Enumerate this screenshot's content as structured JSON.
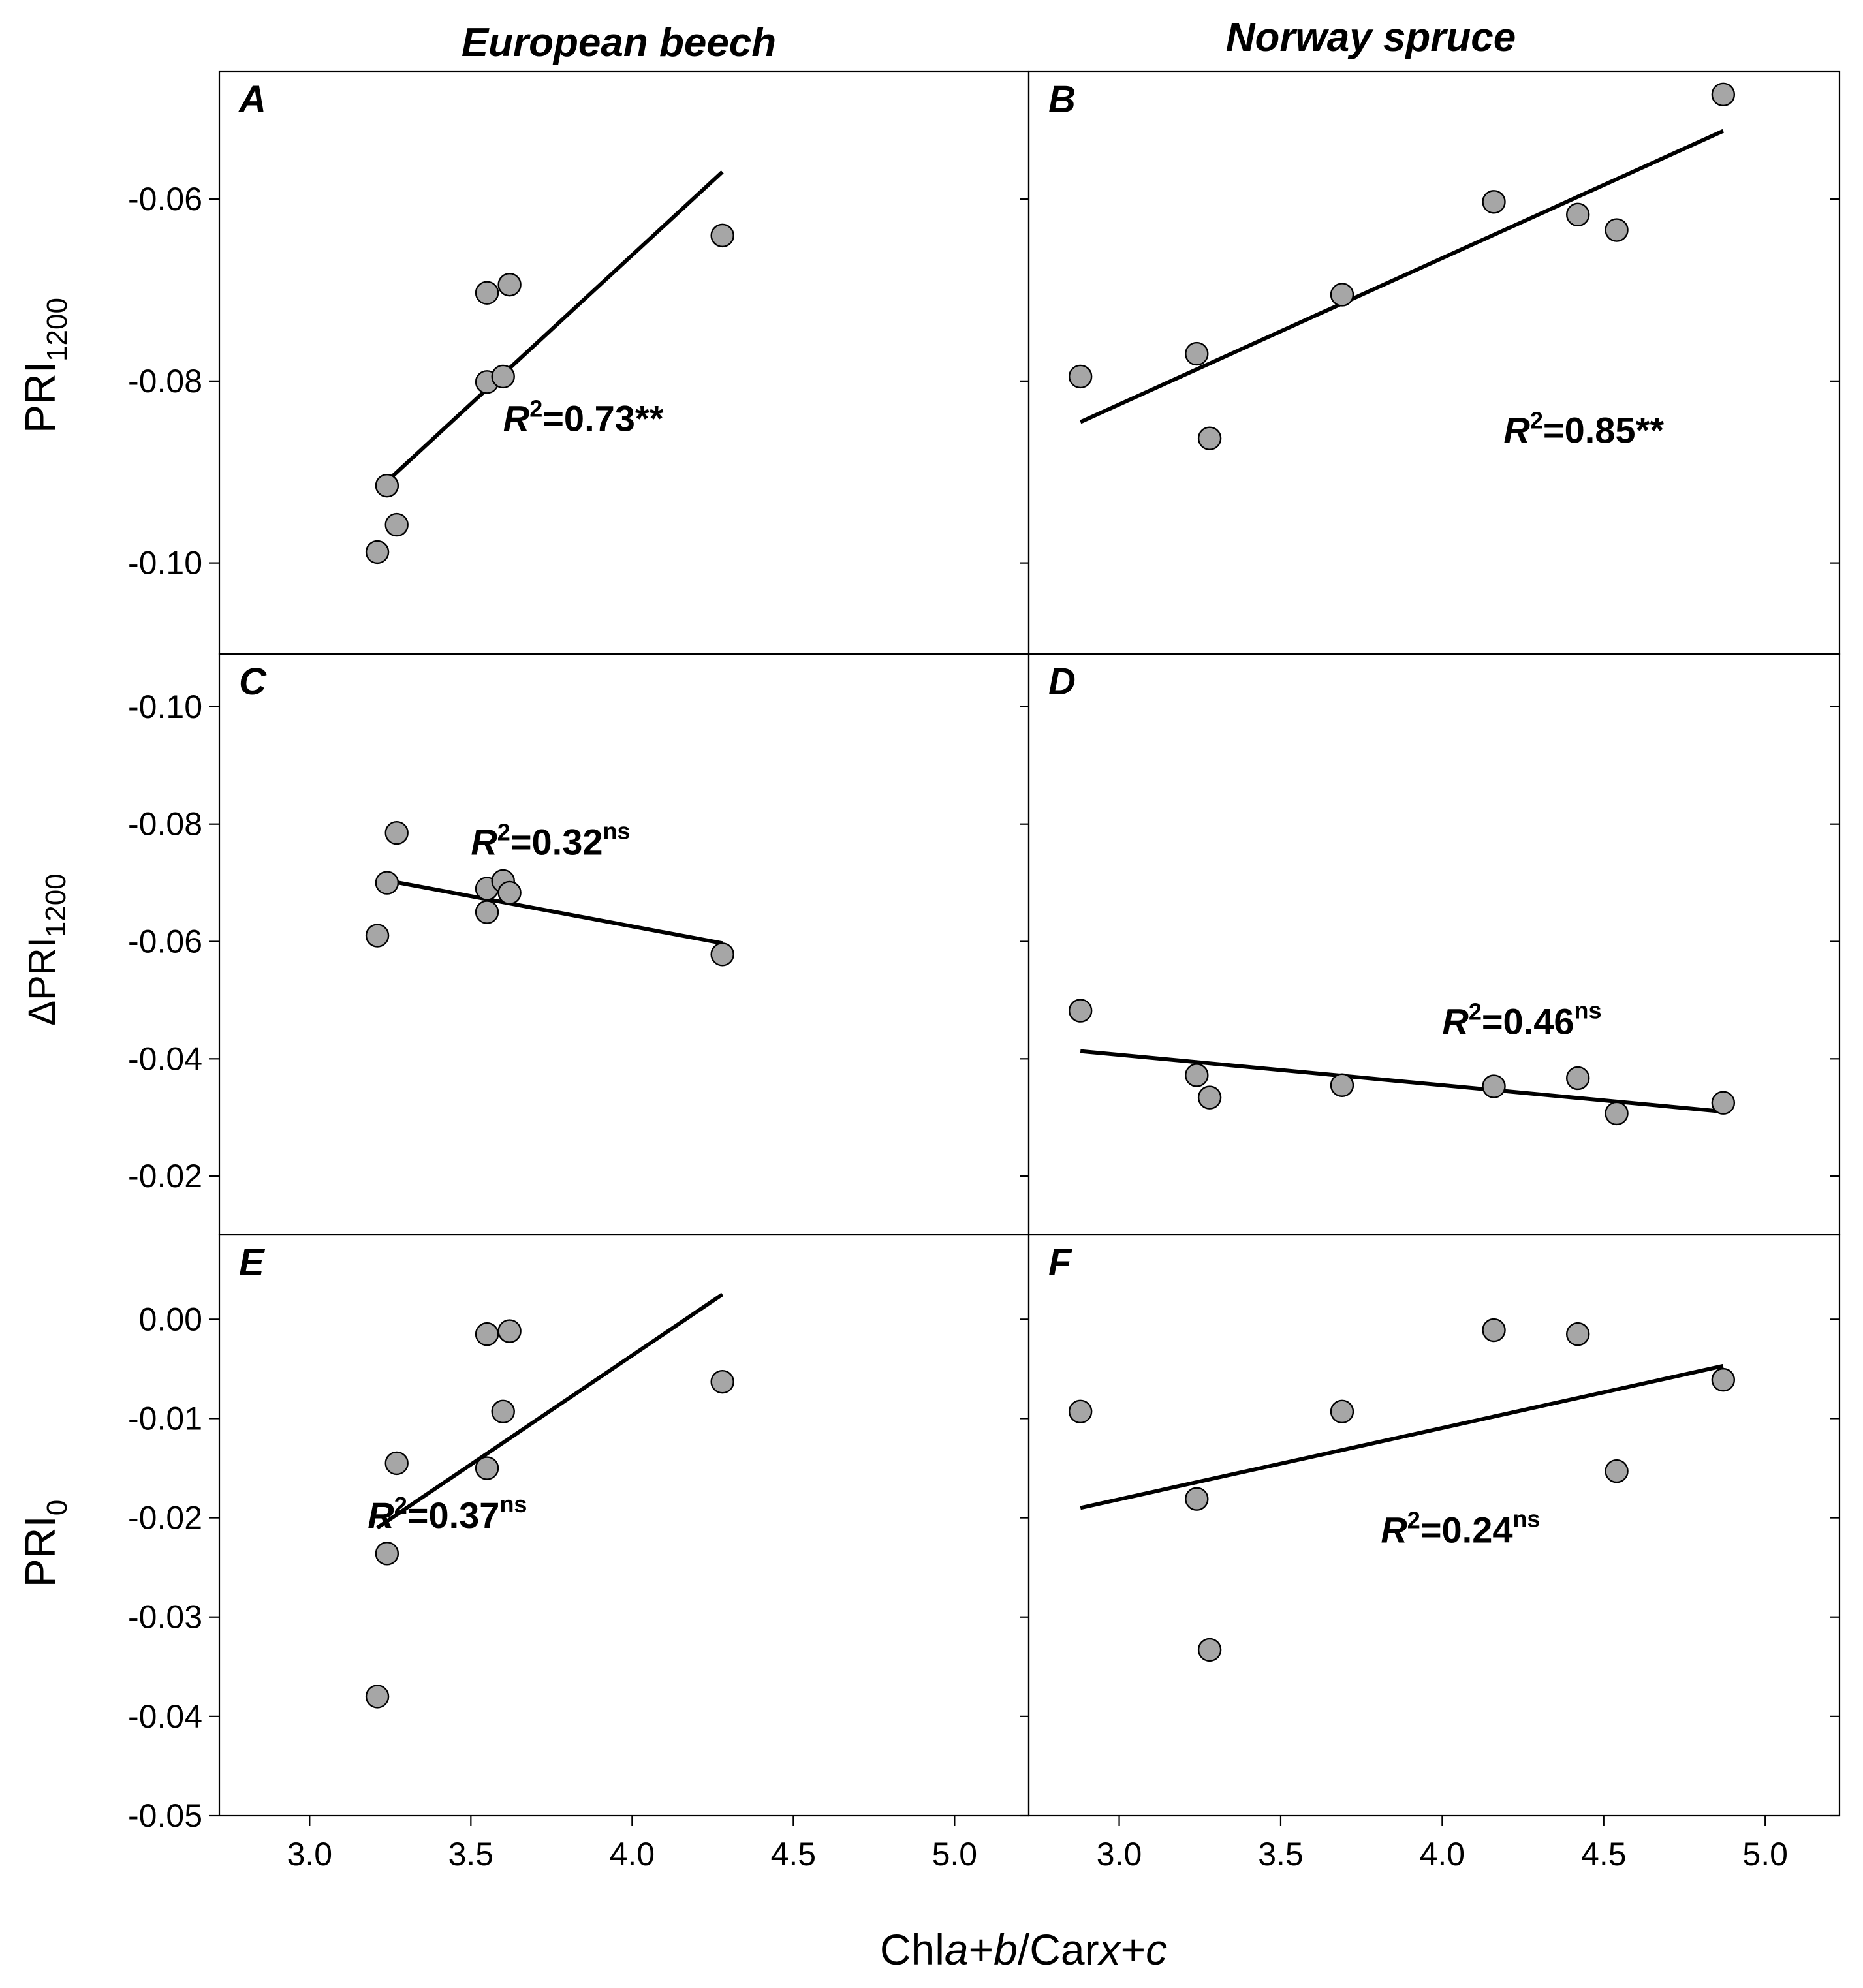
{
  "chart_data": {
    "type": "scatter",
    "column_titles": [
      "European beech",
      "Norway spruce"
    ],
    "x_axis": {
      "label": {
        "prefix": "Chl",
        "a": "a",
        "plus1": "+",
        "b": "b",
        "slash": "/Car",
        "x": "x",
        "plus2": "+",
        "c": "c"
      },
      "ticks": [
        "3.0",
        "3.5",
        "4.0",
        "4.5",
        "5.0"
      ],
      "tick_values": [
        3.0,
        3.5,
        4.0,
        4.5,
        5.0
      ],
      "xlim": [
        2.72,
        5.23
      ]
    },
    "rows": [
      {
        "ylabel_main": "PRI",
        "ylabel_sub": "1200",
        "ylim": [
          -0.11,
          -0.046
        ],
        "inverted": false,
        "yticks": [
          -0.06,
          -0.08,
          -0.1
        ],
        "ytick_labels": [
          "-0.06",
          "-0.08",
          "-0.10"
        ]
      },
      {
        "ylabel_main": "ΔPRI",
        "ylabel_sub": "1200",
        "ylim": [
          -0.01,
          -0.109
        ],
        "inverted": true,
        "yticks": [
          -0.1,
          -0.08,
          -0.06,
          -0.04,
          -0.02
        ],
        "ytick_labels": [
          "-0.10",
          "-0.08",
          "-0.06",
          "-0.04",
          "-0.02"
        ]
      },
      {
        "ylabel_main": "PRI",
        "ylabel_sub": "0",
        "ylim": [
          -0.05,
          0.0085
        ],
        "inverted": false,
        "yticks": [
          0.0,
          -0.01,
          -0.02,
          -0.03,
          -0.04,
          -0.05
        ],
        "ytick_labels": [
          "0.00",
          "-0.01",
          "-0.02",
          "-0.03",
          "-0.04",
          "-0.05"
        ]
      }
    ],
    "panels": [
      {
        "letter": "A",
        "row": 0,
        "col": 0,
        "points": [
          [
            3.21,
            -0.0988
          ],
          [
            3.24,
            -0.0915
          ],
          [
            3.27,
            -0.0958
          ],
          [
            3.55,
            -0.0703
          ],
          [
            3.55,
            -0.0801
          ],
          [
            3.6,
            -0.0795
          ],
          [
            3.62,
            -0.0694
          ],
          [
            4.28,
            -0.064
          ]
        ],
        "fit": [
          [
            3.21,
            -0.092
          ],
          [
            4.28,
            -0.057
          ]
        ],
        "r2": {
          "prefix": "R",
          "sup1": "2",
          "value": "=0.73**",
          "sup2": ""
        },
        "r2_pos": [
          3.6,
          -0.0855
        ]
      },
      {
        "letter": "B",
        "row": 0,
        "col": 1,
        "points": [
          [
            2.88,
            -0.0795
          ],
          [
            3.24,
            -0.077
          ],
          [
            3.28,
            -0.0863
          ],
          [
            3.69,
            -0.0705
          ],
          [
            4.16,
            -0.0603
          ],
          [
            4.42,
            -0.0617
          ],
          [
            4.54,
            -0.0634
          ],
          [
            4.87,
            -0.0485
          ]
        ],
        "fit": [
          [
            2.88,
            -0.0845
          ],
          [
            4.87,
            -0.0525
          ]
        ],
        "r2": {
          "prefix": "R",
          "sup1": "2",
          "value": "=0.85**",
          "sup2": ""
        },
        "r2_pos": [
          4.19,
          -0.0868
        ]
      },
      {
        "letter": "C",
        "row": 1,
        "col": 0,
        "points": [
          [
            3.21,
            -0.061
          ],
          [
            3.24,
            -0.07
          ],
          [
            3.27,
            -0.0785
          ],
          [
            3.55,
            -0.065
          ],
          [
            3.55,
            -0.069
          ],
          [
            3.6,
            -0.0703
          ],
          [
            3.62,
            -0.0683
          ],
          [
            4.28,
            -0.0578
          ]
        ],
        "fit": [
          [
            3.21,
            -0.0707
          ],
          [
            4.28,
            -0.0597
          ]
        ],
        "r2": {
          "prefix": "R",
          "sup1": "2",
          "value": "=0.32",
          "sup2": "ns"
        },
        "r2_pos": [
          3.5,
          -0.0748
        ]
      },
      {
        "letter": "D",
        "row": 1,
        "col": 1,
        "points": [
          [
            2.88,
            -0.0482
          ],
          [
            3.24,
            -0.0372
          ],
          [
            3.28,
            -0.0334
          ],
          [
            3.69,
            -0.0355
          ],
          [
            4.16,
            -0.0353
          ],
          [
            4.42,
            -0.0367
          ],
          [
            4.54,
            -0.0307
          ],
          [
            4.87,
            -0.0325
          ]
        ],
        "fit": [
          [
            2.88,
            -0.0413
          ],
          [
            4.87,
            -0.031
          ]
        ],
        "r2": {
          "prefix": "R",
          "sup1": "2",
          "value": "=0.46",
          "sup2": "ns"
        },
        "r2_pos": [
          4.0,
          -0.0442
        ]
      },
      {
        "letter": "E",
        "row": 2,
        "col": 0,
        "points": [
          [
            3.21,
            -0.038
          ],
          [
            3.24,
            -0.0236
          ],
          [
            3.27,
            -0.0145
          ],
          [
            3.55,
            -0.0015
          ],
          [
            3.55,
            -0.015
          ],
          [
            3.6,
            -0.0093
          ],
          [
            3.62,
            -0.0012
          ],
          [
            4.28,
            -0.0063
          ]
        ],
        "fit": [
          [
            3.21,
            -0.021
          ],
          [
            4.28,
            0.0025
          ]
        ],
        "r2": {
          "prefix": "R",
          "sup1": "2",
          "value": "=0.37",
          "sup2": "ns"
        },
        "r2_pos": [
          3.18,
          -0.021
        ]
      },
      {
        "letter": "F",
        "row": 2,
        "col": 1,
        "points": [
          [
            2.88,
            -0.0093
          ],
          [
            3.24,
            -0.0181
          ],
          [
            3.28,
            -0.0333
          ],
          [
            3.69,
            -0.0093
          ],
          [
            4.16,
            -0.0011
          ],
          [
            4.42,
            -0.0015
          ],
          [
            4.54,
            -0.0153
          ],
          [
            4.87,
            -0.0061
          ]
        ],
        "fit": [
          [
            2.88,
            -0.019
          ],
          [
            4.87,
            -0.0047
          ]
        ],
        "r2": {
          "prefix": "R",
          "sup1": "2",
          "value": "=0.24",
          "sup2": "ns"
        },
        "r2_pos": [
          3.81,
          -0.0225
        ]
      }
    ]
  }
}
